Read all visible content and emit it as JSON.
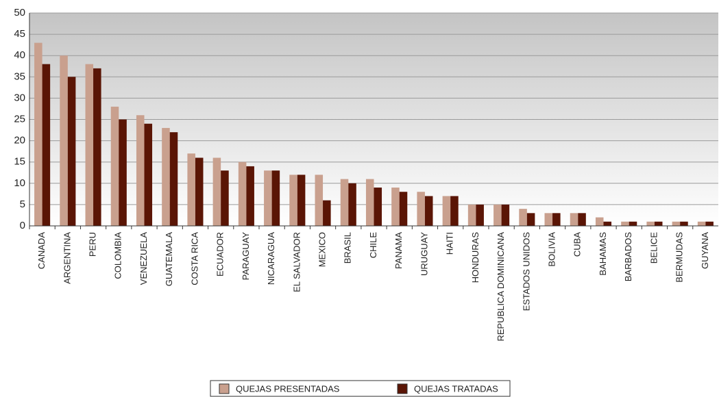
{
  "chart_data": {
    "type": "bar",
    "categories": [
      "CANADA",
      "ARGENTINA",
      "PERU",
      "COLOMBIA",
      "VENEZUELA",
      "GUATEMALA",
      "COSTA RICA",
      "ECUADOR",
      "PARAGUAY",
      "NICARAGUA",
      "EL SALVADOR",
      "MEXICO",
      "BRASIL",
      "CHILE",
      "PANAMA",
      "URUGUAY",
      "HAITI",
      "HONDURAS",
      "REPUBLICA DOMINICANA",
      "ESTADOS UNIDOS",
      "BOLIVIA",
      "CUBA",
      "BAHAMAS",
      "BARBADOS",
      "BELICE",
      "BERMUDAS",
      "GUYANA"
    ],
    "series": [
      {
        "name": "QUEJAS PRESENTADAS",
        "color": "#c9a08e",
        "values": [
          43,
          40,
          38,
          28,
          26,
          23,
          17,
          16,
          15,
          13,
          12,
          12,
          11,
          11,
          9,
          8,
          7,
          5,
          5,
          4,
          3,
          3,
          2,
          1,
          1,
          1,
          1
        ]
      },
      {
        "name": "QUEJAS TRATADAS",
        "color": "#5a1505",
        "values": [
          38,
          35,
          37,
          25,
          24,
          22,
          16,
          13,
          14,
          13,
          12,
          6,
          10,
          9,
          8,
          7,
          7,
          5,
          5,
          3,
          3,
          3,
          1,
          1,
          1,
          1,
          1
        ]
      }
    ],
    "ylim": [
      0,
      50
    ],
    "yticks": [
      0,
      5,
      10,
      15,
      20,
      25,
      30,
      35,
      40,
      45,
      50
    ],
    "grid": true,
    "legend": "bottom"
  }
}
